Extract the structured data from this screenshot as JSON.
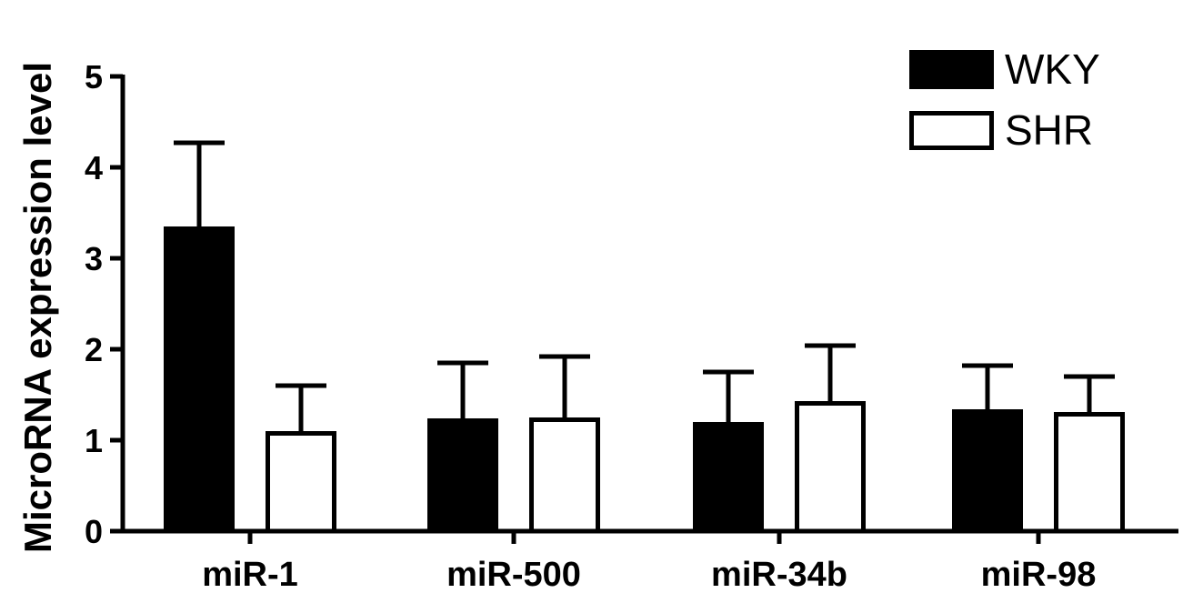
{
  "chart_data": {
    "type": "bar",
    "ylabel": "MicroRNA expression level",
    "xlabel": "",
    "ylim": [
      0,
      5
    ],
    "yticks": [
      0,
      1,
      2,
      3,
      4,
      5
    ],
    "categories": [
      "miR-1",
      "miR-500",
      "miR-34b",
      "miR-98"
    ],
    "series": [
      {
        "name": "WKY",
        "fill": "#000000",
        "values": [
          3.35,
          1.24,
          1.2,
          1.34
        ],
        "errors": [
          0.92,
          0.61,
          0.55,
          0.48
        ]
      },
      {
        "name": "SHR",
        "fill": "#ffffff",
        "values": [
          1.1,
          1.25,
          1.43,
          1.31
        ],
        "errors": [
          0.5,
          0.67,
          0.61,
          0.39
        ]
      }
    ],
    "legend_position": "top-right",
    "grid": false
  }
}
